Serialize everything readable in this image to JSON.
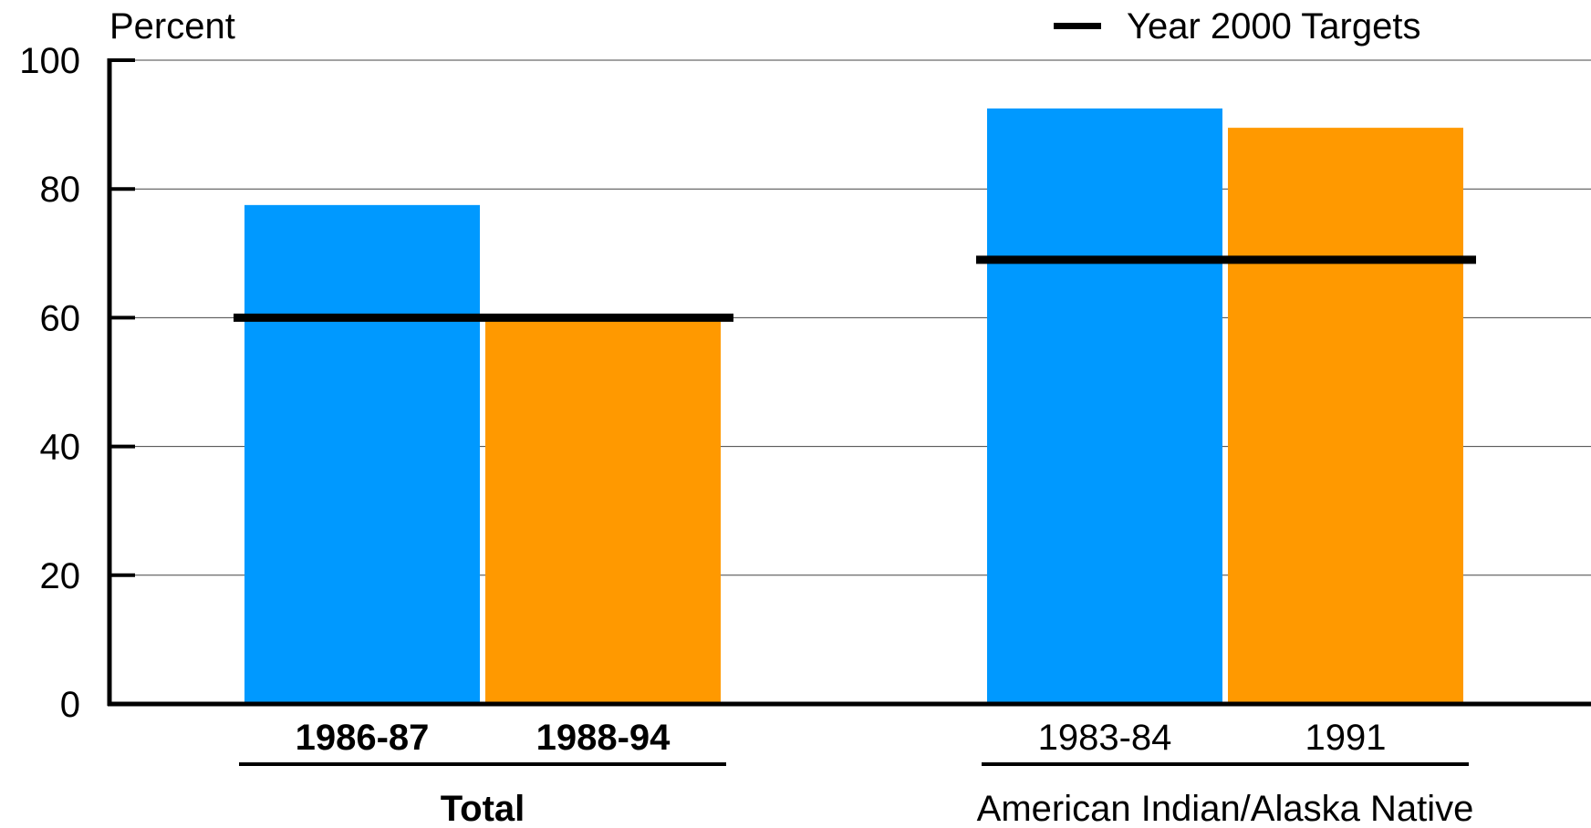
{
  "chart_data": {
    "type": "bar",
    "ylabel": "Percent",
    "ylim": [
      0,
      100
    ],
    "yticks": [
      "0",
      "20",
      "40",
      "60",
      "80",
      "100"
    ],
    "grid": true,
    "legend": {
      "label": "Year 2000 Targets",
      "position": "top-right"
    },
    "colors": {
      "first_period": "#0099FF",
      "second_period": "#FF9900",
      "target": "#000000"
    },
    "groups": [
      {
        "name": "Total",
        "name_bold": true,
        "bars": [
          {
            "label": "1986-87",
            "value": 77.5,
            "color": "#0099FF"
          },
          {
            "label": "1988-94",
            "value": 60.5,
            "color": "#FF9900"
          }
        ],
        "target": 60
      },
      {
        "name": "American Indian/Alaska Native",
        "name_bold": false,
        "bars": [
          {
            "label": "1983-84",
            "value": 92.5,
            "color": "#0099FF"
          },
          {
            "label": "1991",
            "value": 89.5,
            "color": "#FF9900"
          }
        ],
        "target": 69
      }
    ]
  }
}
